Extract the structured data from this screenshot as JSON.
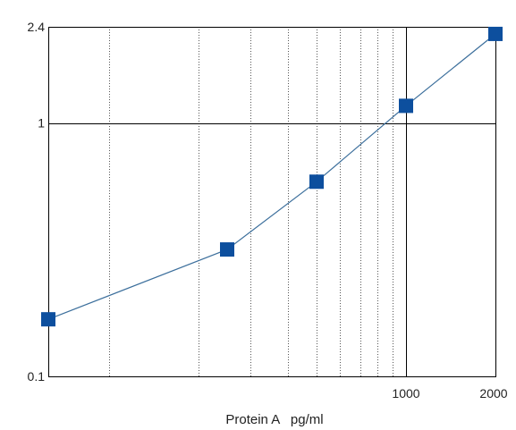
{
  "chart_data": {
    "type": "scatter",
    "title": "",
    "xlabel": "Protein A   pg/ml",
    "ylabel": "",
    "x_scale": "log",
    "y_scale": "log",
    "xlim": [
      62.5,
      2000
    ],
    "ylim": [
      0.1,
      2.4
    ],
    "x_tick_labels": [
      {
        "value": 1000,
        "label": "1000"
      },
      {
        "value": 2000,
        "label": "2000"
      }
    ],
    "y_tick_labels": [
      {
        "value": 2.4,
        "label": "2.4"
      },
      {
        "value": 1,
        "label": "1"
      },
      {
        "value": 0.1,
        "label": "0.1"
      }
    ],
    "x_minor_gridlines": [
      100,
      200,
      300,
      400,
      500,
      600,
      700,
      800,
      900
    ],
    "x_major_gridlines": [
      1000
    ],
    "y_major_gridlines": [
      1
    ],
    "grid": true,
    "series": [
      {
        "x": [
          62.5,
          250,
          500,
          1000,
          2000
        ],
        "y": [
          0.168,
          0.317,
          0.587,
          1.17,
          2.25
        ],
        "color": "#0d4f9e",
        "line_color": "#3c6f9c",
        "marker": "square",
        "connected": true
      }
    ]
  }
}
